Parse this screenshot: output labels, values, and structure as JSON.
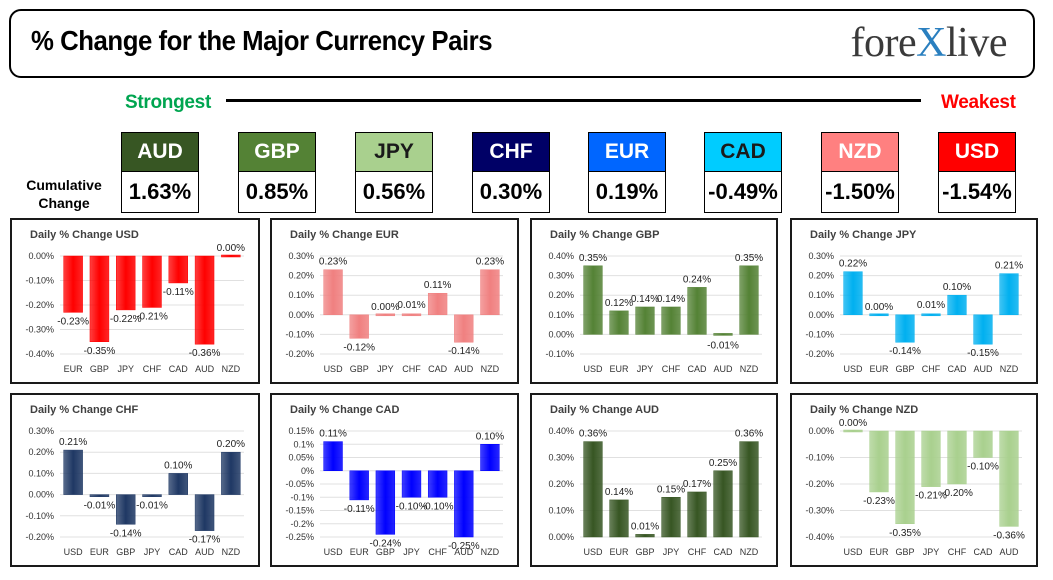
{
  "header": {
    "title": "% Change for the Major Currency Pairs",
    "logo_left": "fore",
    "logo_x": "X",
    "logo_right": "live"
  },
  "scale": {
    "strongest": "Strongest",
    "weakest": "Weakest"
  },
  "cumulative_label": [
    "Cumulative",
    "Change"
  ],
  "colors": {
    "strong": "#00a550",
    "weak": "#ff0000"
  },
  "rank": [
    {
      "cur": "AUD",
      "val": "1.63%",
      "bg": "#375623",
      "fg": "#ffffff"
    },
    {
      "cur": "GBP",
      "val": "0.85%",
      "bg": "#548235",
      "fg": "#ffffff"
    },
    {
      "cur": "JPY",
      "val": "0.56%",
      "bg": "#a9d08e",
      "fg": "#1a1a1a"
    },
    {
      "cur": "CHF",
      "val": "0.30%",
      "bg": "#000066",
      "fg": "#ffffff"
    },
    {
      "cur": "EUR",
      "val": "0.19%",
      "bg": "#0066ff",
      "fg": "#ffffff"
    },
    {
      "cur": "CAD",
      "val": "-0.49%",
      "bg": "#00ccff",
      "fg": "#1a1a1a"
    },
    {
      "cur": "NZD",
      "val": "-1.50%",
      "bg": "#ff8080",
      "fg": "#ffffff"
    },
    {
      "cur": "USD",
      "val": "-1.54%",
      "bg": "#ff0000",
      "fg": "#ffffff"
    }
  ],
  "chart_data": [
    {
      "type": "bar",
      "title": "Daily % Change USD",
      "color": "#ff0000",
      "categories": [
        "EUR",
        "GBP",
        "JPY",
        "CHF",
        "CAD",
        "AUD",
        "NZD"
      ],
      "values": [
        -0.23,
        -0.35,
        -0.22,
        -0.21,
        -0.11,
        -0.36,
        0.0
      ],
      "labels": [
        "-0.23%",
        "-0.35%",
        "-0.22%",
        "-0.21%",
        "-0.11%",
        "-0.36%",
        "0.00%"
      ],
      "ylim": [
        -0.4,
        0.0
      ],
      "yticks": [
        0,
        -0.1,
        -0.2,
        -0.3,
        -0.4
      ],
      "yticklabels": [
        "0.00%",
        "-0.10%",
        "-0.20%",
        "-0.30%",
        "-0.40%"
      ]
    },
    {
      "type": "bar",
      "title": "Daily % Change EUR",
      "color": "#f08080",
      "categories": [
        "USD",
        "GBP",
        "JPY",
        "CHF",
        "CAD",
        "AUD",
        "NZD"
      ],
      "values": [
        0.23,
        -0.12,
        0.0,
        0.01,
        0.11,
        -0.14,
        0.23
      ],
      "labels": [
        "0.23%",
        "-0.12%",
        "0.00%",
        "0.01%",
        "0.11%",
        "-0.14%",
        "0.23%"
      ],
      "ylim": [
        -0.2,
        0.3
      ],
      "yticks": [
        0.3,
        0.2,
        0.1,
        0,
        -0.1,
        -0.2
      ],
      "yticklabels": [
        "0.30%",
        "0.20%",
        "0.10%",
        "0.00%",
        "-0.10%",
        "-0.20%"
      ]
    },
    {
      "type": "bar",
      "title": "Daily % Change GBP",
      "color": "#548235",
      "categories": [
        "USD",
        "EUR",
        "JPY",
        "CHF",
        "CAD",
        "AUD",
        "NZD"
      ],
      "values": [
        0.35,
        0.12,
        0.14,
        0.14,
        0.24,
        -0.01,
        0.35
      ],
      "labels": [
        "0.35%",
        "0.12%",
        "0.14%",
        "0.14%",
        "0.24%",
        "-0.01%",
        "0.35%"
      ],
      "ylim": [
        -0.1,
        0.4
      ],
      "yticks": [
        0.4,
        0.3,
        0.2,
        0.1,
        0,
        -0.1
      ],
      "yticklabels": [
        "0.40%",
        "0.30%",
        "0.20%",
        "0.10%",
        "0.00%",
        "-0.10%"
      ]
    },
    {
      "type": "bar",
      "title": "Daily % Change JPY",
      "color": "#00b0f0",
      "categories": [
        "USD",
        "EUR",
        "GBP",
        "CHF",
        "CAD",
        "AUD",
        "NZD"
      ],
      "values": [
        0.22,
        0.0,
        -0.14,
        0.01,
        0.1,
        -0.15,
        0.21
      ],
      "labels": [
        "0.22%",
        "0.00%",
        "-0.14%",
        "0.01%",
        "0.10%",
        "-0.15%",
        "0.21%"
      ],
      "ylim": [
        -0.2,
        0.3
      ],
      "yticks": [
        0.3,
        0.2,
        0.1,
        0,
        -0.1,
        -0.2
      ],
      "yticklabels": [
        "0.30%",
        "0.20%",
        "0.10%",
        "0.00%",
        "-0.10%",
        "-0.20%"
      ]
    },
    {
      "type": "bar",
      "title": "Daily % Change CHF",
      "color": "#1f3864",
      "categories": [
        "USD",
        "EUR",
        "GBP",
        "JPY",
        "CAD",
        "AUD",
        "NZD"
      ],
      "values": [
        0.21,
        -0.01,
        -0.14,
        -0.01,
        0.1,
        -0.17,
        0.2
      ],
      "labels": [
        "0.21%",
        "-0.01%",
        "-0.14%",
        "-0.01%",
        "0.10%",
        "-0.17%",
        "0.20%"
      ],
      "ylim": [
        -0.2,
        0.3
      ],
      "yticks": [
        0.3,
        0.2,
        0.1,
        0,
        -0.1,
        -0.2
      ],
      "yticklabels": [
        "0.30%",
        "0.20%",
        "0.10%",
        "0.00%",
        "-0.10%",
        "-0.20%"
      ]
    },
    {
      "type": "bar",
      "title": "Daily % Change CAD",
      "color": "#0000ff",
      "categories": [
        "USD",
        "EUR",
        "GBP",
        "JPY",
        "CHF",
        "AUD",
        "NZD"
      ],
      "values": [
        0.11,
        -0.11,
        -0.24,
        -0.1,
        -0.1,
        -0.25,
        0.1
      ],
      "labels": [
        "0.11%",
        "-0.11%",
        "-0.24%",
        "-0.10%",
        "-0.10%",
        "-0.25%",
        "0.10%"
      ],
      "ylim": [
        -0.25,
        0.15
      ],
      "yticks": [
        0.15,
        0.1,
        0.05,
        0,
        -0.05,
        -0.1,
        -0.15,
        -0.2,
        -0.25
      ],
      "yticklabels": [
        "0.15%",
        "0.1%",
        "0.05%",
        "0%",
        "-0.05%",
        "-0.1%",
        "-0.15%",
        "-0.2%",
        "-0.25%"
      ]
    },
    {
      "type": "bar",
      "title": "Daily % Change AUD",
      "color": "#375623",
      "categories": [
        "USD",
        "EUR",
        "GBP",
        "JPY",
        "CHF",
        "CAD",
        "NZD"
      ],
      "values": [
        0.36,
        0.14,
        0.01,
        0.15,
        0.17,
        0.25,
        0.36
      ],
      "labels": [
        "0.36%",
        "0.14%",
        "0.01%",
        "0.15%",
        "0.17%",
        "0.25%",
        "0.36%"
      ],
      "ylim": [
        0,
        0.4
      ],
      "yticks": [
        0.4,
        0.3,
        0.2,
        0.1,
        0
      ],
      "yticklabels": [
        "0.40%",
        "0.30%",
        "0.20%",
        "0.10%",
        "0.00%"
      ]
    },
    {
      "type": "bar",
      "title": "Daily % Change NZD",
      "color": "#a9d08e",
      "categories": [
        "USD",
        "EUR",
        "GBP",
        "JPY",
        "CHF",
        "CAD",
        "AUD"
      ],
      "values": [
        0.0,
        -0.23,
        -0.35,
        -0.21,
        -0.2,
        -0.1,
        -0.36
      ],
      "labels": [
        "0.00%",
        "-0.23%",
        "-0.35%",
        "-0.21%",
        "-0.20%",
        "-0.10%",
        "-0.36%"
      ],
      "ylim": [
        -0.4,
        0.0
      ],
      "yticks": [
        0,
        -0.1,
        -0.2,
        -0.3,
        -0.4
      ],
      "yticklabels": [
        "0.00%",
        "-0.10%",
        "-0.20%",
        "-0.30%",
        "-0.40%"
      ]
    }
  ]
}
